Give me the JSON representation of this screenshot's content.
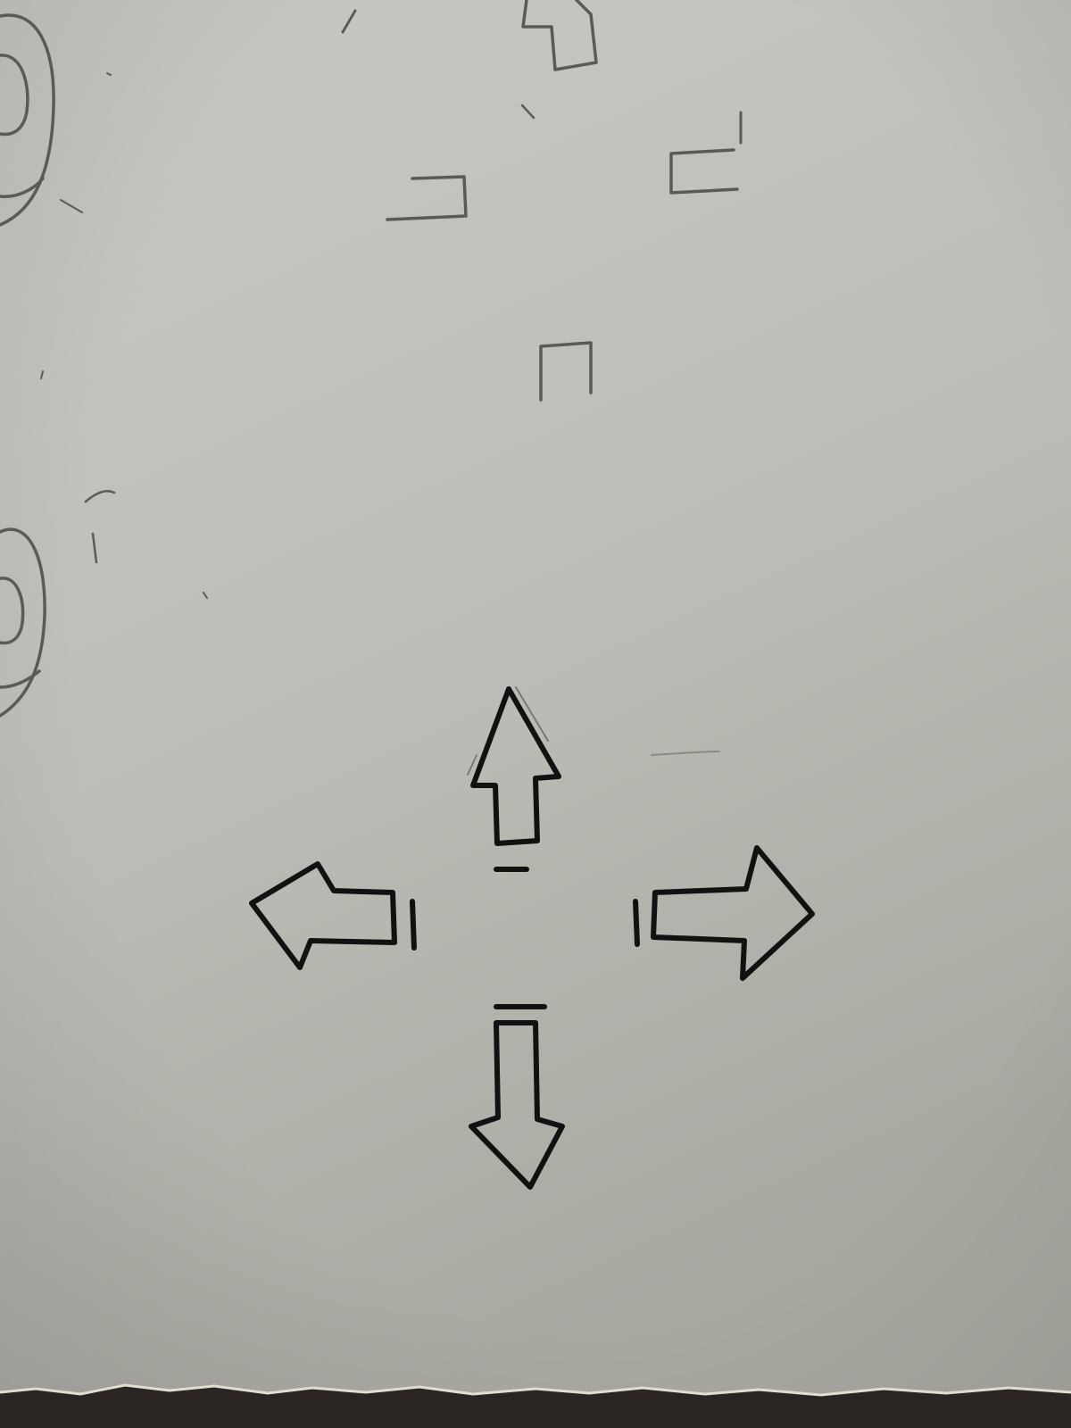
{
  "scene": {
    "paper_colors": {
      "top": "#c9c8c3",
      "middle": "#bdbcb6",
      "bottom": "#a9a8a1"
    },
    "ink_color": "#111111",
    "pencil_color": "#5a5a56",
    "table_color": "#2a2522"
  },
  "icons": [
    "up-arrow-icon",
    "down-arrow-icon",
    "left-arrow-icon",
    "right-arrow-icon"
  ]
}
